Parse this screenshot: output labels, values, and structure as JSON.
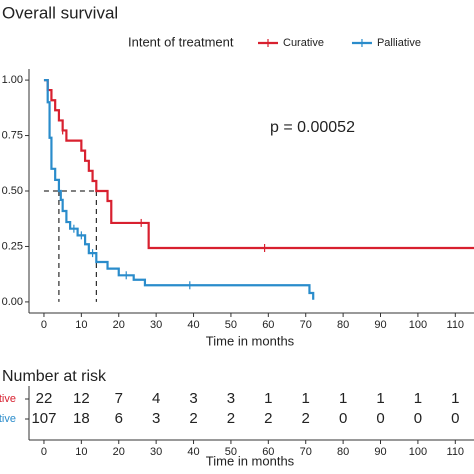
{
  "chart_data": {
    "type": "step",
    "title": "Overall survival",
    "legend_title": "Intent of treatment",
    "legend": "top",
    "annotation": "p = 0.00052",
    "xlabel": "Time in months",
    "xlim": [
      -4,
      115
    ],
    "ylim": [
      -0.05,
      1.05
    ],
    "xticks": [
      0,
      10,
      20,
      30,
      40,
      50,
      60,
      70,
      80,
      90,
      100,
      110
    ],
    "yticks": [
      {
        "value": 0,
        "label": "0.00"
      },
      0.25,
      {
        "value": 0.5,
        "label": "0.50"
      },
      0.75,
      {
        "value": 1,
        "label": "1.00"
      }
    ],
    "median_level": 0.5,
    "medians": [
      4,
      14
    ],
    "series": [
      {
        "name": "Curative",
        "color": "#d8202f",
        "x": [
          0,
          1,
          2,
          3,
          4,
          5,
          6,
          10,
          11,
          12,
          13,
          14,
          17,
          18,
          28,
          115
        ],
        "values": [
          1,
          0.955,
          0.909,
          0.864,
          0.818,
          0.773,
          0.727,
          0.682,
          0.636,
          0.591,
          0.545,
          0.5,
          0.455,
          0.356,
          0.243,
          0.243
        ],
        "censor_x": [
          5,
          26,
          59
        ],
        "censor_values": [
          0.773,
          0.356,
          0.243
        ]
      },
      {
        "name": "Palliative",
        "color": "#2a8ccb",
        "x": [
          0,
          1,
          1.5,
          2,
          3,
          4,
          4.5,
          5,
          6,
          7,
          9,
          11,
          12,
          14,
          17,
          20,
          24,
          27,
          71,
          72
        ],
        "values": [
          1,
          0.9,
          0.74,
          0.6,
          0.55,
          0.5,
          0.46,
          0.41,
          0.36,
          0.33,
          0.3,
          0.26,
          0.22,
          0.18,
          0.15,
          0.12,
          0.1,
          0.075,
          0.04,
          0.01
        ],
        "censor_x": [
          8,
          10,
          13,
          22,
          39
        ],
        "censor_values": [
          0.33,
          0.3,
          0.22,
          0.12,
          0.075
        ]
      }
    ],
    "risk_table": {
      "title": "Number at risk",
      "xlabel": "Time in months",
      "xticks": [
        0,
        10,
        20,
        30,
        40,
        50,
        60,
        70,
        80,
        90,
        100,
        110
      ],
      "rows": [
        {
          "name": "Curative",
          "color": "#d8202f",
          "values": [
            22,
            12,
            7,
            4,
            3,
            3,
            1,
            1,
            1,
            1,
            1,
            1
          ]
        },
        {
          "name": "Palliative",
          "color": "#2a8ccb",
          "values": [
            107,
            18,
            6,
            3,
            2,
            2,
            2,
            2,
            0,
            0,
            0,
            0
          ]
        }
      ]
    }
  }
}
